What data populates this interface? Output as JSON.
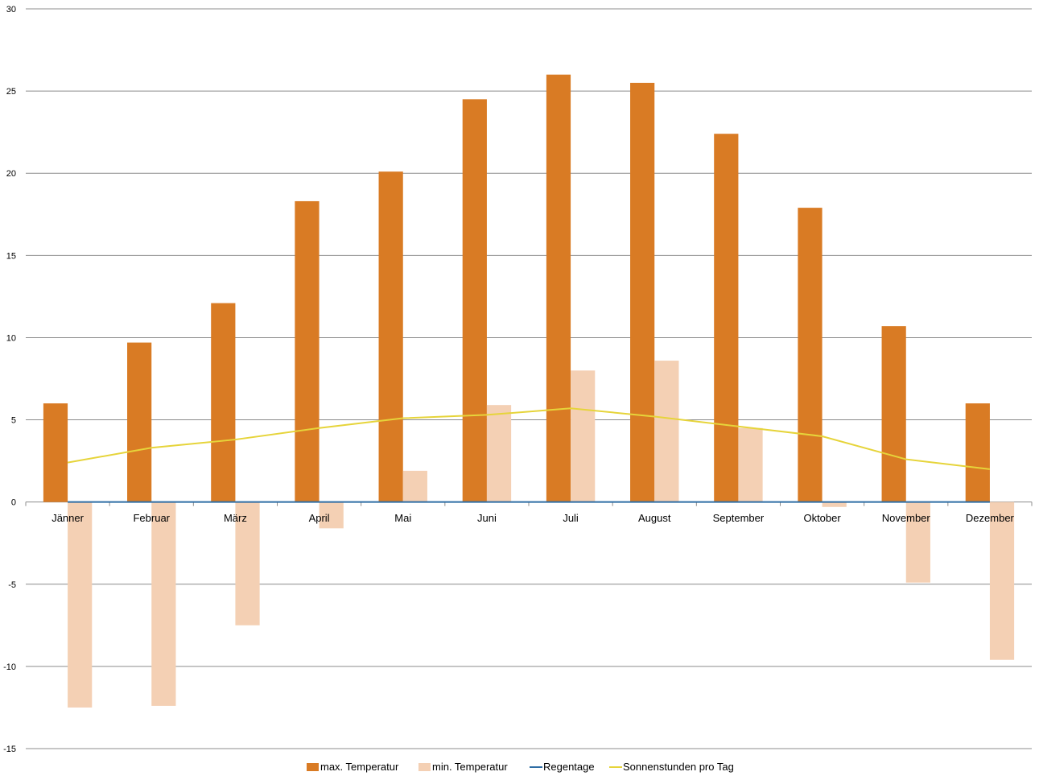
{
  "chart_data": {
    "type": "bar",
    "categories": [
      "Jänner",
      "Februar",
      "März",
      "April",
      "Mai",
      "Juni",
      "Juli",
      "August",
      "September",
      "Oktober",
      "November",
      "Dezember"
    ],
    "ylim": [
      -15,
      30
    ],
    "yticks": [
      30,
      25,
      20,
      15,
      10,
      5,
      0,
      -5,
      -10,
      -15
    ],
    "ytick_labels": [
      "30",
      "25",
      "20",
      "15",
      "10",
      "5",
      "0",
      "-5",
      "-10",
      "-15"
    ],
    "grid": true,
    "legend": "bottom",
    "series": [
      {
        "name": "max. Temperatur",
        "kind": "bar",
        "color": "#D97B24",
        "values": [
          6.0,
          9.7,
          12.1,
          18.3,
          20.1,
          24.5,
          26.0,
          25.5,
          22.4,
          17.9,
          10.7,
          6.0
        ]
      },
      {
        "name": "min. Temperatur",
        "kind": "bar",
        "color": "#F4D0B4",
        "values": [
          -12.5,
          -12.4,
          -7.5,
          -1.6,
          1.9,
          5.9,
          8.0,
          8.6,
          4.5,
          -0.3,
          -4.9,
          -9.6
        ]
      },
      {
        "name": "Regentage",
        "kind": "line",
        "color": "#2E6DA4",
        "values": [
          0,
          0,
          0,
          0,
          0,
          0,
          0,
          0,
          0,
          0,
          0,
          0
        ]
      },
      {
        "name": "Sonnenstunden pro Tag",
        "kind": "line",
        "color": "#E6D43A",
        "values": [
          2.4,
          3.3,
          3.8,
          4.5,
          5.1,
          5.3,
          5.7,
          5.2,
          4.6,
          4.0,
          2.6,
          2.0
        ]
      }
    ]
  }
}
